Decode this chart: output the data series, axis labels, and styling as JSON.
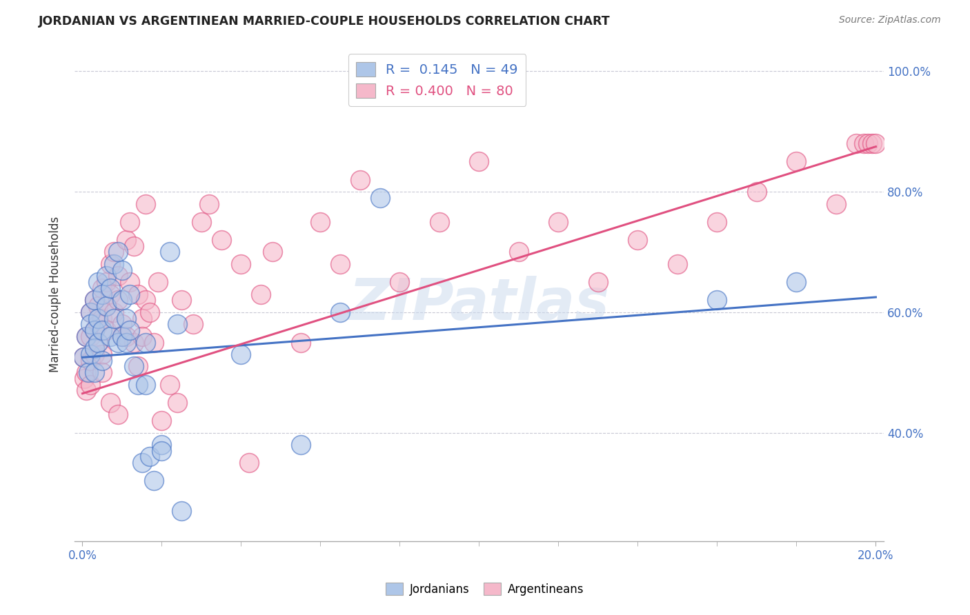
{
  "title": "JORDANIAN VS ARGENTINEAN MARRIED-COUPLE HOUSEHOLDS CORRELATION CHART",
  "source": "Source: ZipAtlas.com",
  "ylabel_label": "Married-couple Households",
  "legend_label1": "Jordanians",
  "legend_label2": "Argentineans",
  "R1": "0.145",
  "N1": "49",
  "R2": "0.400",
  "N2": "80",
  "color_jordan": "#aec6e8",
  "color_argent": "#f5b8ca",
  "color_jordan_line": "#4472c4",
  "color_argent_line": "#e05080",
  "color_jordan_text": "#4472c4",
  "color_argent_text": "#e05080",
  "watermark": "ZIPatlas",
  "background_color": "#ffffff",
  "grid_color": "#c8c8d4",
  "jordan_scatter_x": [
    0.0003,
    0.001,
    0.0015,
    0.002,
    0.002,
    0.002,
    0.003,
    0.003,
    0.003,
    0.003,
    0.004,
    0.004,
    0.004,
    0.005,
    0.005,
    0.005,
    0.006,
    0.006,
    0.007,
    0.007,
    0.008,
    0.008,
    0.009,
    0.009,
    0.01,
    0.01,
    0.01,
    0.011,
    0.011,
    0.012,
    0.012,
    0.013,
    0.014,
    0.015,
    0.016,
    0.016,
    0.017,
    0.018,
    0.02,
    0.02,
    0.022,
    0.024,
    0.025,
    0.04,
    0.055,
    0.065,
    0.075,
    0.16,
    0.18
  ],
  "jordan_scatter_y": [
    0.525,
    0.56,
    0.5,
    0.6,
    0.58,
    0.53,
    0.57,
    0.62,
    0.54,
    0.5,
    0.65,
    0.59,
    0.55,
    0.63,
    0.57,
    0.52,
    0.66,
    0.61,
    0.64,
    0.56,
    0.68,
    0.59,
    0.7,
    0.55,
    0.67,
    0.62,
    0.56,
    0.59,
    0.55,
    0.63,
    0.57,
    0.51,
    0.48,
    0.35,
    0.55,
    0.48,
    0.36,
    0.32,
    0.38,
    0.37,
    0.7,
    0.58,
    0.27,
    0.53,
    0.38,
    0.6,
    0.79,
    0.62,
    0.65
  ],
  "argent_scatter_x": [
    0.0003,
    0.0005,
    0.001,
    0.001,
    0.001,
    0.002,
    0.002,
    0.002,
    0.002,
    0.003,
    0.003,
    0.003,
    0.004,
    0.004,
    0.004,
    0.005,
    0.005,
    0.005,
    0.005,
    0.006,
    0.006,
    0.006,
    0.007,
    0.007,
    0.007,
    0.008,
    0.008,
    0.009,
    0.009,
    0.009,
    0.01,
    0.01,
    0.011,
    0.011,
    0.012,
    0.012,
    0.013,
    0.013,
    0.014,
    0.014,
    0.015,
    0.015,
    0.016,
    0.016,
    0.017,
    0.018,
    0.019,
    0.02,
    0.022,
    0.024,
    0.025,
    0.028,
    0.03,
    0.032,
    0.035,
    0.04,
    0.042,
    0.045,
    0.048,
    0.055,
    0.06,
    0.065,
    0.07,
    0.08,
    0.09,
    0.1,
    0.11,
    0.12,
    0.13,
    0.14,
    0.15,
    0.16,
    0.17,
    0.18,
    0.19,
    0.195,
    0.197,
    0.198,
    0.199,
    0.2
  ],
  "argent_scatter_y": [
    0.525,
    0.49,
    0.56,
    0.5,
    0.47,
    0.6,
    0.56,
    0.52,
    0.48,
    0.57,
    0.53,
    0.62,
    0.55,
    0.61,
    0.58,
    0.64,
    0.59,
    0.53,
    0.5,
    0.65,
    0.61,
    0.57,
    0.68,
    0.63,
    0.45,
    0.7,
    0.6,
    0.66,
    0.62,
    0.43,
    0.58,
    0.56,
    0.72,
    0.56,
    0.75,
    0.65,
    0.71,
    0.55,
    0.63,
    0.51,
    0.59,
    0.56,
    0.78,
    0.62,
    0.6,
    0.55,
    0.65,
    0.42,
    0.48,
    0.45,
    0.62,
    0.58,
    0.75,
    0.78,
    0.72,
    0.68,
    0.35,
    0.63,
    0.7,
    0.55,
    0.75,
    0.68,
    0.82,
    0.65,
    0.75,
    0.85,
    0.7,
    0.75,
    0.65,
    0.72,
    0.68,
    0.75,
    0.8,
    0.85,
    0.78,
    0.88,
    0.88,
    0.88,
    0.88,
    0.88
  ],
  "jordan_line_x": [
    0.0,
    0.2
  ],
  "jordan_line_y": [
    0.525,
    0.625
  ],
  "argent_line_x": [
    0.0,
    0.2
  ],
  "argent_line_y": [
    0.465,
    0.875
  ],
  "xlim": [
    -0.002,
    0.202
  ],
  "ylim": [
    0.22,
    1.04
  ],
  "x_tick_positions": [
    0.0,
    0.2
  ],
  "x_tick_labels": [
    "0.0%",
    "20.0%"
  ],
  "y_tick_positions": [
    0.4,
    0.6,
    0.8,
    1.0
  ],
  "y_tick_labels": [
    "40.0%",
    "60.0%",
    "80.0%",
    "100.0%"
  ],
  "figsize": [
    14.06,
    8.92
  ],
  "dpi": 100
}
